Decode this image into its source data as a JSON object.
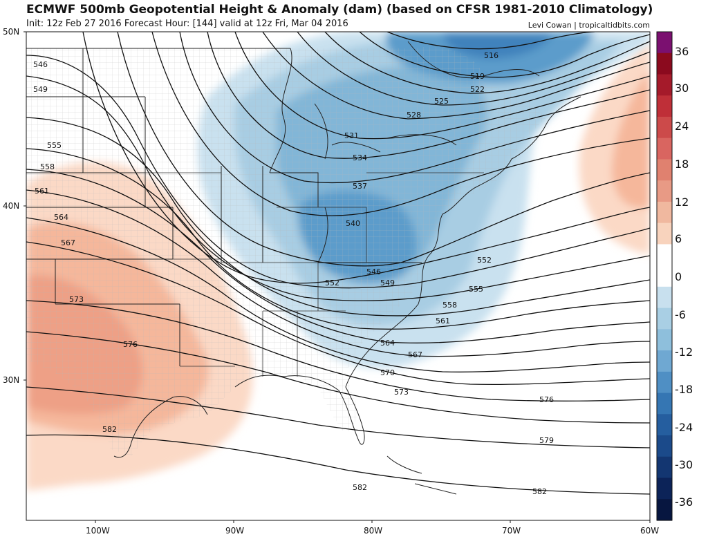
{
  "header": {
    "title": "ECMWF 500mb Geopotential Height & Anomaly (dam) (based on CFSR 1981-2010 Climatology)",
    "subtitle": "Init: 12z Feb 27 2016   Forecast Hour: [144]   valid at 12z Fri, Mar 04 2016",
    "credit": "Levi Cowan | tropicaltidbits.com"
  },
  "axes": {
    "lat_labels": [
      "50N",
      "40N",
      "30N"
    ],
    "lon_labels": [
      "100W",
      "90W",
      "80W",
      "70W",
      "60W"
    ]
  },
  "contour_labels": [
    "516",
    "519",
    "522",
    "525",
    "528",
    "531",
    "534",
    "537",
    "540",
    "546",
    "549",
    "552",
    "555",
    "558",
    "561",
    "564",
    "567",
    "570",
    "573",
    "576",
    "579",
    "582",
    "546",
    "549",
    "552",
    "555",
    "558",
    "561",
    "564",
    "567",
    "573",
    "576",
    "582",
    "582"
  ],
  "colorbar": {
    "ticks": [
      "36",
      "30",
      "24",
      "18",
      "12",
      "6",
      "0",
      "-6",
      "-12",
      "-18",
      "-24",
      "-30",
      "-36"
    ],
    "colors": [
      "#7b1070",
      "#8b0a1e",
      "#a51a2a",
      "#bf2f38",
      "#cc4a4a",
      "#d96560",
      "#e0816f",
      "#e89a85",
      "#f0b89f",
      "#f8d3bd",
      "#ffffff",
      "#ffffff",
      "#c8e0ee",
      "#a9cfe4",
      "#8ebfdc",
      "#6fa8d2",
      "#4f8fc4",
      "#3576b3",
      "#255e9f",
      "#1b4a8a",
      "#133671",
      "#0c2358",
      "#071640"
    ]
  },
  "colors": {
    "positive_anomaly": "#f5b49a",
    "negative_anomaly": "#5b9ccb",
    "contour": "#111111"
  }
}
